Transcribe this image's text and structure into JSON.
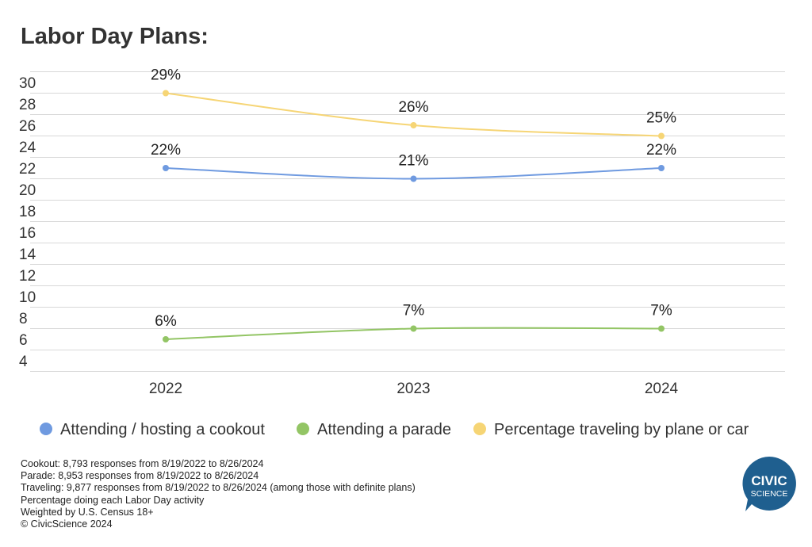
{
  "chart_data": {
    "type": "line",
    "title": "Labor Day Plans:",
    "categories": [
      "2022",
      "2023",
      "2024"
    ],
    "ylim": [
      3,
      31
    ],
    "yticks": [
      4,
      6,
      8,
      10,
      12,
      14,
      16,
      18,
      20,
      22,
      24,
      26,
      28,
      30
    ],
    "grid": true,
    "legend_position": "bottom",
    "series": [
      {
        "name": "Attending / hosting a cookout",
        "values": [
          22,
          21,
          22
        ],
        "labels": [
          "22%",
          "21%",
          "22%"
        ],
        "color": "#6f9ae0"
      },
      {
        "name": "Attending a parade",
        "values": [
          6,
          7,
          7
        ],
        "labels": [
          "6%",
          "7%",
          "7%"
        ],
        "color": "#93c565"
      },
      {
        "name": "Percentage traveling by plane or car",
        "values": [
          29,
          26,
          25
        ],
        "labels": [
          "29%",
          "26%",
          "25%"
        ],
        "color": "#f6d575"
      }
    ]
  },
  "footer": {
    "lines": [
      "Cookout: 8,793 responses from 8/19/2022 to 8/26/2024",
      "Parade: 8,953 responses from 8/19/2022 to 8/26/2024",
      "Traveling: 9,877 responses from 8/19/2022 to 8/26/2024 (among those with definite plans)",
      "Percentage doing each Labor Day activity",
      "Weighted by U.S. Census 18+",
      "© CivicScience 2024"
    ]
  },
  "logo": {
    "line1": "CIVIC",
    "line2": "SCIENCE",
    "color": "#1f5f8f"
  }
}
